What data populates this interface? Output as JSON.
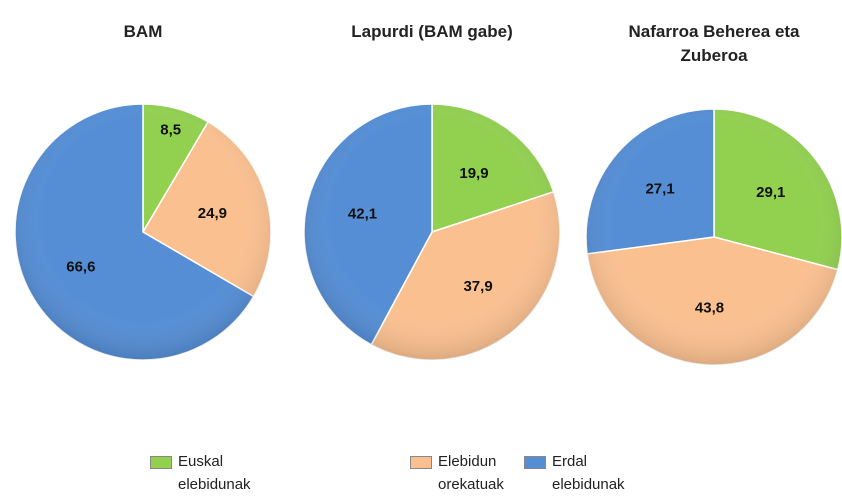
{
  "categories": [
    "Euskal elebidunak",
    "Elebidun orekatuak",
    "Erdal elebidunak"
  ],
  "colors": [
    "#92d050",
    "#fac090",
    "#558ed5"
  ],
  "chart_data": [
    {
      "type": "pie",
      "title": "BAM",
      "values": [
        8.5,
        24.9,
        66.6
      ],
      "value_labels": [
        "8,5",
        "24,9",
        "66,6"
      ]
    },
    {
      "type": "pie",
      "title": "Lapurdi (BAM gabe)",
      "values": [
        19.9,
        37.9,
        42.1
      ],
      "value_labels": [
        "19,9",
        "37,9",
        "42,1"
      ]
    },
    {
      "type": "pie",
      "title": "Nafarroa Beherea eta Zuberoa",
      "values": [
        29.1,
        43.8,
        27.1
      ],
      "value_labels": [
        "29,1",
        "43,8",
        "27,1"
      ]
    }
  ]
}
